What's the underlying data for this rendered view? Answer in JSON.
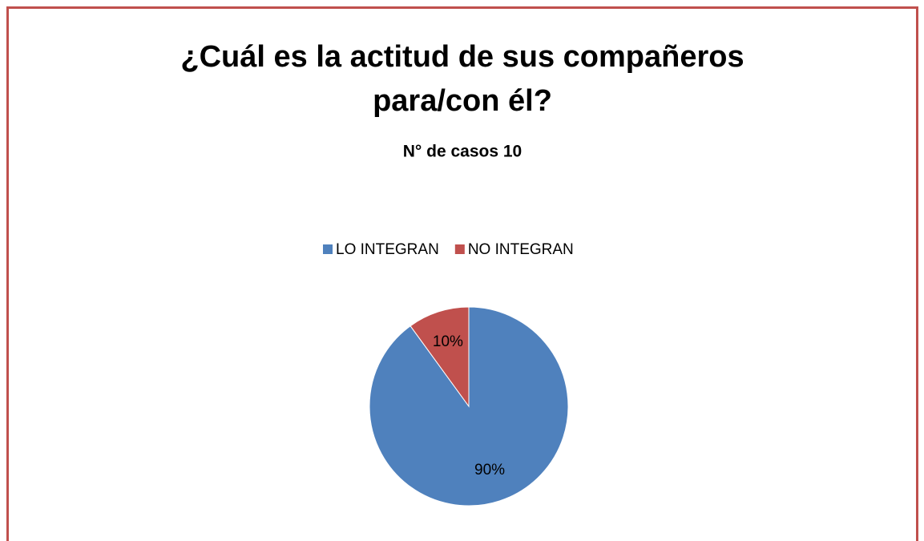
{
  "chart_data": {
    "type": "pie",
    "title": [
      "¿Cuál es la actitud de sus compañeros",
      "para/con él?"
    ],
    "subtitle": "N° de casos 10",
    "categories": [
      "LO INTEGRAN",
      "NO INTEGRAN"
    ],
    "values": [
      90,
      10
    ],
    "value_labels": [
      "90%",
      "10%"
    ],
    "colors": [
      "#4f81bd",
      "#c0504d"
    ],
    "legend": "top"
  }
}
